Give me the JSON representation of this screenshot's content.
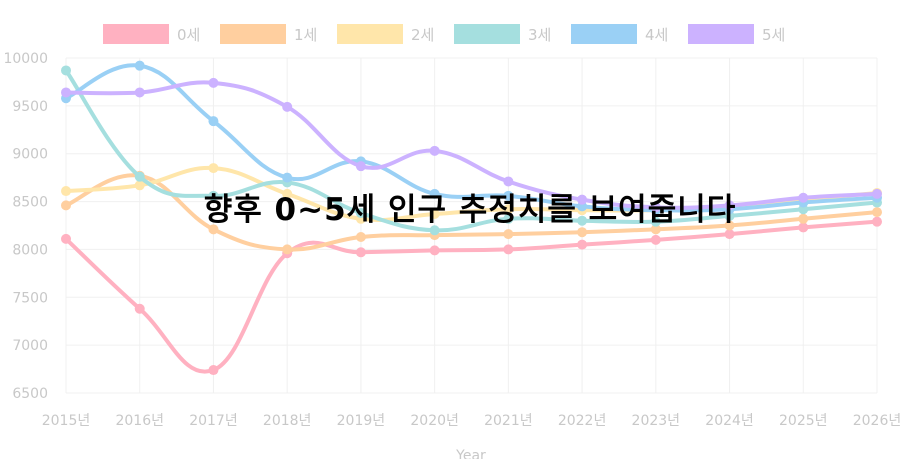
{
  "overlay_text": "향후 0~5세 인구 추정치를 보여줍니다",
  "chart_data": {
    "type": "line",
    "xlabel": "Year",
    "ylabel": "",
    "categories": [
      "2015년",
      "2016년",
      "2017년",
      "2018년",
      "2019년",
      "2020년",
      "2021년",
      "2022년",
      "2023년",
      "2024년",
      "2025년",
      "2026년"
    ],
    "ylim": [
      6500,
      10000
    ],
    "yticks": [
      6500,
      7000,
      7500,
      8000,
      8500,
      9000,
      9500,
      10000
    ],
    "grid": true,
    "legend_position": "top",
    "series": [
      {
        "name": "0세",
        "color": "#ffb1c1",
        "values": [
          8110,
          7380,
          6740,
          7960,
          7970,
          7990,
          8000,
          8050,
          8100,
          8160,
          8230,
          8290
        ]
      },
      {
        "name": "1세",
        "color": "#ffcf9f",
        "values": [
          8460,
          8770,
          8210,
          8000,
          8130,
          8150,
          8160,
          8180,
          8210,
          8250,
          8320,
          8390
        ]
      },
      {
        "name": "2세",
        "color": "#ffe6aa",
        "values": [
          8610,
          8670,
          8850,
          8580,
          8320,
          8370,
          8420,
          8410,
          8410,
          8450,
          8520,
          8590
        ]
      },
      {
        "name": "3세",
        "color": "#a5dfdf",
        "values": [
          9870,
          8760,
          8560,
          8700,
          8380,
          8200,
          8320,
          8300,
          8290,
          8350,
          8420,
          8490
        ]
      },
      {
        "name": "4세",
        "color": "#9ad0f5",
        "values": [
          9580,
          9920,
          9340,
          8750,
          8920,
          8580,
          8560,
          8450,
          8410,
          8420,
          8490,
          8540
        ]
      },
      {
        "name": "5세",
        "color": "#ccb2ff",
        "values": [
          9640,
          9640,
          9740,
          9490,
          8870,
          9030,
          8710,
          8520,
          8440,
          8460,
          8540,
          8580
        ]
      }
    ]
  }
}
